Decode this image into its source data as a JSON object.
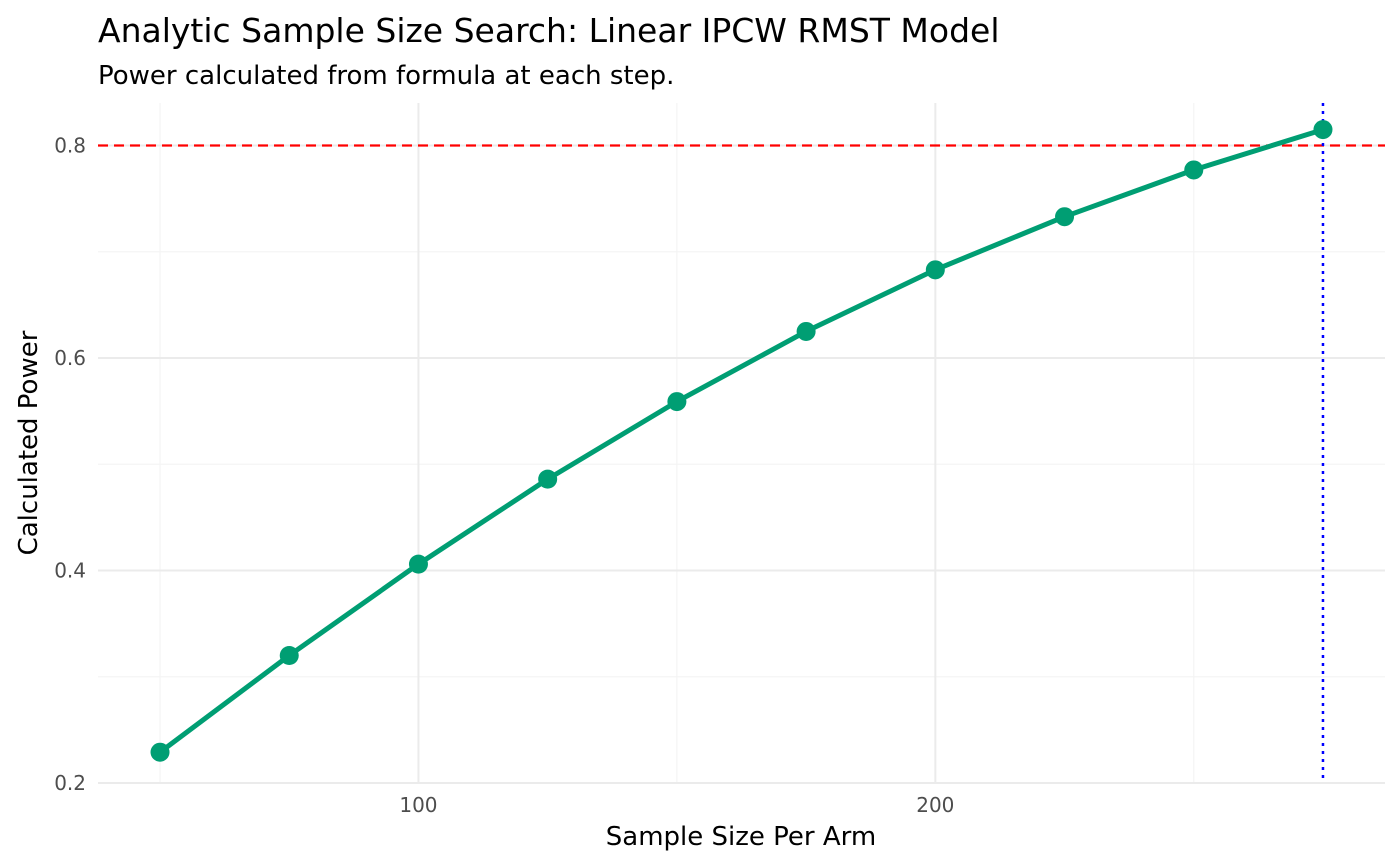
{
  "chart_data": {
    "type": "line",
    "title": "Analytic Sample Size Search: Linear IPCW RMST Model",
    "subtitle": "Power calculated from formula at each step.",
    "xlabel": "Sample Size Per Arm",
    "ylabel": "Calculated Power",
    "x": [
      50,
      75,
      100,
      125,
      150,
      175,
      200,
      225,
      250,
      275
    ],
    "series": [
      {
        "values": [
          0.229,
          0.32,
          0.406,
          0.486,
          0.559,
          0.625,
          0.683,
          0.733,
          0.777,
          0.815
        ]
      }
    ],
    "xlim": [
      38,
      287
    ],
    "ylim": [
      0.2,
      0.84
    ],
    "x_major_ticks": [
      100,
      200
    ],
    "x_minor_ticks": [
      50,
      150,
      250
    ],
    "y_major_ticks": [
      0.2,
      0.4,
      0.6,
      0.8
    ],
    "y_minor_ticks": [
      0.3,
      0.5,
      0.7
    ],
    "x_tick_labels": [
      "100",
      "200"
    ],
    "y_tick_labels": [
      "0.2",
      "0.4",
      "0.6",
      "0.8"
    ],
    "reference_lines": [
      {
        "orientation": "horizontal",
        "value": 0.8,
        "style": "dashed",
        "color": "#ff0000"
      },
      {
        "orientation": "vertical",
        "value": 275,
        "style": "dotted",
        "color": "#0000ff"
      }
    ],
    "grid": true,
    "legend": "none",
    "line_color": "#009E73",
    "point_color": "#009E73",
    "major_grid_color": "#ebebeb",
    "minor_grid_color": "#f4f4f4",
    "background_color": "#ffffff"
  }
}
